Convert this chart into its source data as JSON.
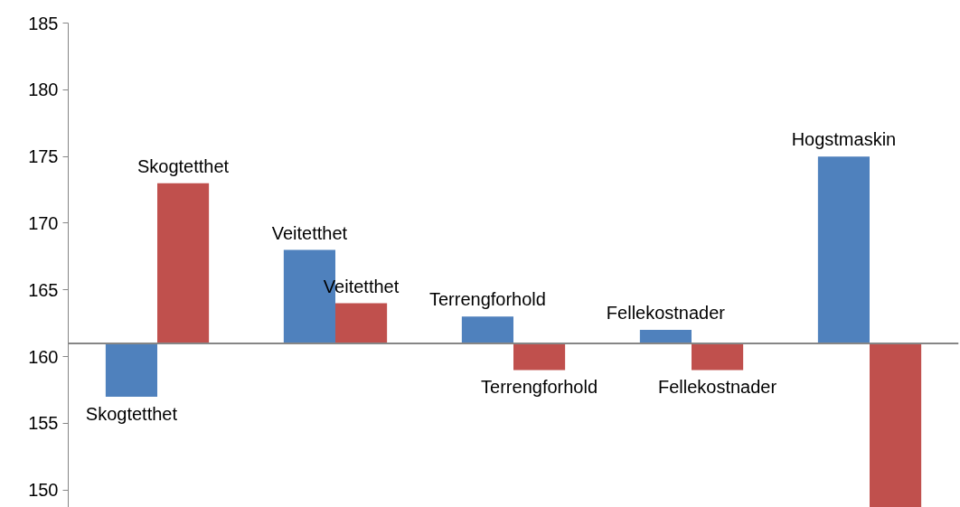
{
  "chart_data": {
    "type": "bar",
    "categories": [
      null,
      null,
      null,
      null,
      null
    ],
    "tick_labels": "y",
    "grid": false,
    "ylim": [
      148.7,
      185
    ],
    "yticks": [
      150,
      155,
      160,
      165,
      170,
      175,
      180,
      185
    ],
    "series": [
      {
        "color": "#4f81bd",
        "base": [
          161,
          161,
          161,
          161,
          161
        ],
        "values": [
          -4,
          7,
          2,
          1,
          14
        ],
        "value_labels": [
          "Skogtetthet",
          "Veitetthet",
          "Terrengforhold",
          "Fellekostnader",
          "Hogstmaskin"
        ]
      },
      {
        "color": "#c0504d",
        "base": [
          161,
          161,
          161,
          161,
          161
        ],
        "values": [
          12,
          3,
          -2,
          -2,
          -12.3
        ],
        "value_labels": [
          "Skogtetthet",
          "Veitetthet",
          "Terrengforhold",
          "Fellekostnader",
          null
        ]
      }
    ],
    "ref_lines": [
      {
        "axis": "y",
        "value": 161,
        "color": "#868686"
      }
    ]
  }
}
